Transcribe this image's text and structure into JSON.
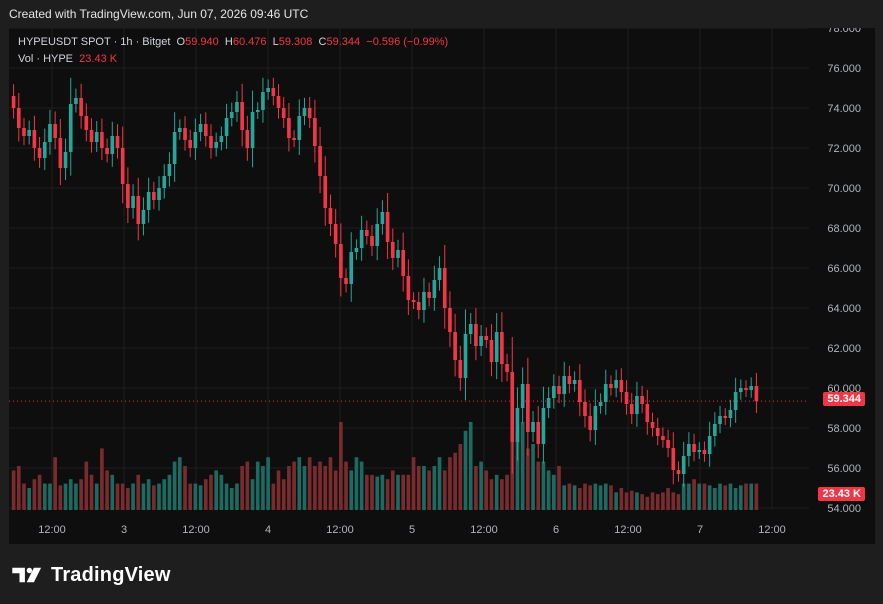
{
  "header": {
    "created_text": "Created with TradingView.com, Jun 07, 2026 09:46 UTC"
  },
  "legend": {
    "symbol": "HYPEUSDT SPOT · 1h · Bitget",
    "o_label": "O",
    "o_value": "59.940",
    "h_label": "H",
    "h_value": "60.476",
    "l_label": "L",
    "l_value": "59.308",
    "c_label": "C",
    "c_value": "59.344",
    "change": "−0.596 (−0.99%)",
    "vol_label": "Vol · HYPE",
    "vol_value": "23.43 K"
  },
  "price_tag": "59.344",
  "vol_tag": "23.43 K",
  "brand": {
    "name": "TradingView"
  },
  "colors": {
    "up": "#26a69a",
    "down": "#f23645",
    "up_vol": "#1b6b63",
    "down_vol": "#7a2b2e",
    "grid": "#1f1f1f",
    "axis_text": "#b2b5be"
  },
  "chart_data": {
    "type": "candlestick",
    "title": "HYPEUSDT SPOT · 1h · Bitget",
    "yticks": [
      "54.000",
      "56.000",
      "58.000",
      "60.000",
      "62.000",
      "64.000",
      "66.000",
      "68.000",
      "70.000",
      "72.000",
      "74.000",
      "76.000",
      "78.000"
    ],
    "ylim": [
      54,
      78
    ],
    "xticks": [
      "12:00",
      "3",
      "12:00",
      "4",
      "12:00",
      "5",
      "12:00",
      "6",
      "12:00",
      "7",
      "12:00"
    ],
    "last_price": 59.344,
    "grid": true,
    "closes": [
      74.0,
      73.0,
      72.6,
      72.9,
      72.0,
      71.5,
      72.3,
      73.2,
      72.5,
      71.0,
      71.8,
      74.2,
      74.5,
      73.6,
      72.9,
      72.3,
      72.8,
      72.0,
      71.7,
      72.6,
      72.0,
      70.2,
      69.0,
      69.6,
      68.2,
      68.9,
      69.8,
      69.4,
      70.0,
      70.6,
      71.2,
      72.8,
      73.0,
      72.4,
      72.0,
      72.8,
      73.2,
      72.6,
      72.0,
      72.3,
      72.6,
      73.5,
      73.8,
      74.3,
      72.9,
      72.0,
      73.8,
      73.9,
      74.8,
      75.0,
      74.6,
      74.0,
      73.5,
      72.5,
      72.4,
      73.6,
      74.0,
      73.5,
      72.1,
      70.6,
      69.0,
      68.2,
      67.2,
      65.5,
      65.2,
      66.8,
      67.0,
      67.9,
      67.6,
      67.1,
      68.2,
      68.8,
      67.3,
      66.5,
      66.9,
      65.6,
      64.4,
      64.3,
      63.9,
      64.8,
      64.5,
      65.4,
      66.0,
      64.0,
      62.8,
      61.4,
      60.5,
      62.7,
      63.2,
      62.1,
      62.6,
      62.4,
      61.3,
      62.8,
      61.2,
      60.8,
      57.3,
      59.0,
      60.2,
      57.8,
      58.3,
      57.2,
      59.0,
      59.5,
      60.1,
      59.7,
      60.6,
      60.2,
      60.4,
      59.3,
      58.6,
      57.9,
      59.1,
      59.3,
      60.2,
      60.0,
      60.4,
      59.8,
      59.2,
      58.7,
      59.6,
      59.2,
      58.3,
      58.0,
      57.6,
      57.4,
      57.0,
      55.9,
      55.7,
      56.6,
      57.2,
      56.8,
      56.9,
      56.7,
      57.6,
      58.2,
      58.6,
      58.5,
      58.9,
      59.8,
      60.0,
      59.9,
      60.1,
      59.34
    ],
    "volumes_relative": [
      0.45,
      0.5,
      0.3,
      0.25,
      0.35,
      0.4,
      0.3,
      0.3,
      0.6,
      0.28,
      0.3,
      0.35,
      0.3,
      0.35,
      0.55,
      0.4,
      0.3,
      0.7,
      0.45,
      0.4,
      0.3,
      0.3,
      0.25,
      0.3,
      0.4,
      0.3,
      0.35,
      0.28,
      0.3,
      0.35,
      0.4,
      0.55,
      0.6,
      0.5,
      0.3,
      0.3,
      0.28,
      0.35,
      0.4,
      0.45,
      0.4,
      0.3,
      0.25,
      0.3,
      0.5,
      0.55,
      0.35,
      0.55,
      0.5,
      0.6,
      0.3,
      0.45,
      0.35,
      0.5,
      0.55,
      0.6,
      0.5,
      0.6,
      0.5,
      0.55,
      0.5,
      0.6,
      0.45,
      1.0,
      0.55,
      0.45,
      0.6,
      0.55,
      0.4,
      0.4,
      0.38,
      0.4,
      0.35,
      0.45,
      0.4,
      0.4,
      0.4,
      0.6,
      0.5,
      0.5,
      0.45,
      0.5,
      0.6,
      0.45,
      0.6,
      0.65,
      0.75,
      0.9,
      1.0,
      0.5,
      0.55,
      0.45,
      0.35,
      0.4,
      0.35,
      0.4,
      0.8,
      0.9,
      1.0,
      0.7,
      0.75,
      0.55,
      0.55,
      0.45,
      0.4,
      0.5,
      0.28,
      0.3,
      0.28,
      0.25,
      0.3,
      0.28,
      0.3,
      0.28,
      0.3,
      0.28,
      0.2,
      0.25,
      0.2,
      0.22,
      0.2,
      0.18,
      0.15,
      0.2,
      0.18,
      0.2,
      0.25,
      0.2,
      0.18,
      0.3,
      0.3,
      0.35,
      0.3,
      0.3,
      0.28,
      0.25,
      0.3,
      0.28,
      0.3,
      0.25,
      0.28,
      0.3,
      0.3
    ]
  }
}
